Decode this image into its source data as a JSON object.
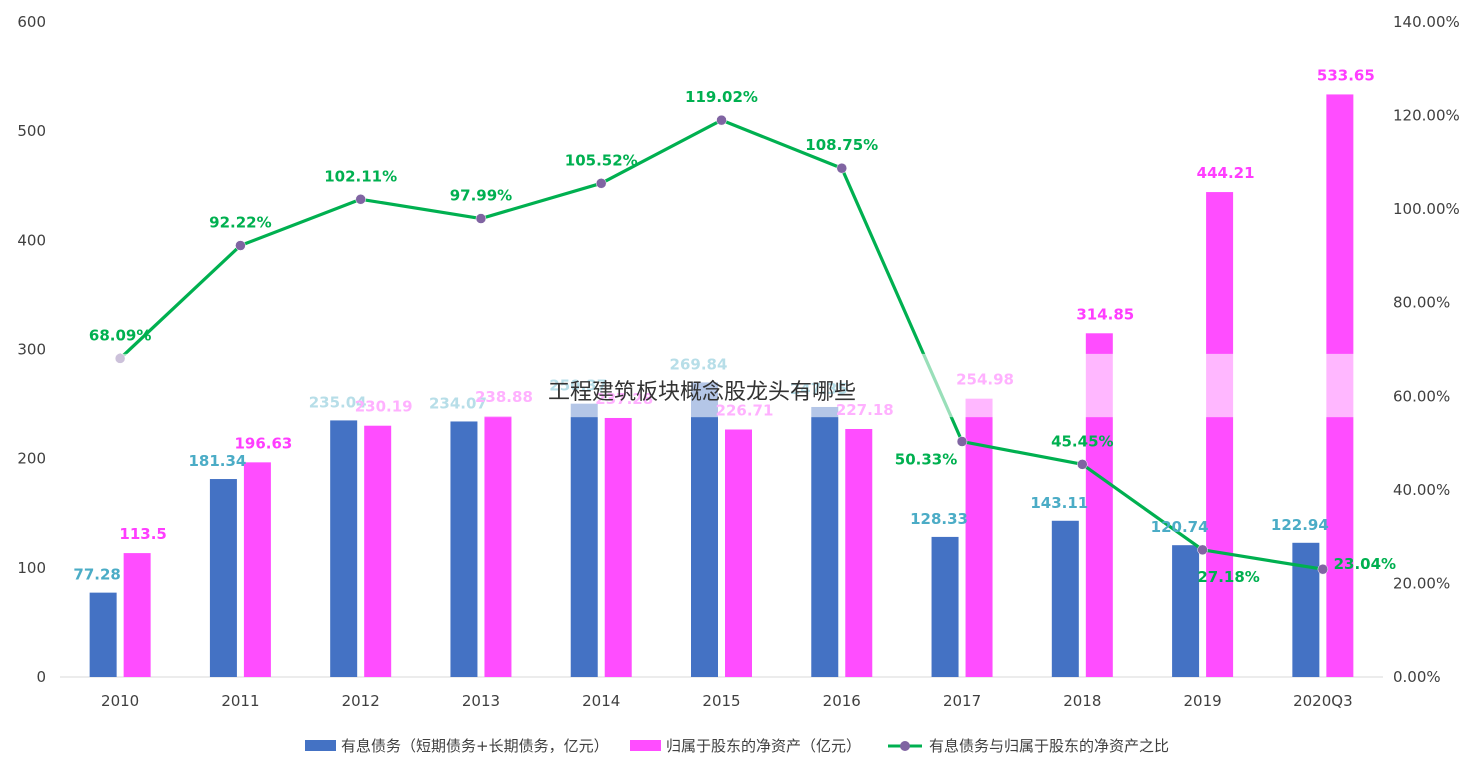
{
  "chart_data": {
    "type": "bar",
    "combo": "bar+line (dual axis)",
    "categories": [
      "2010",
      "2011",
      "2012",
      "2013",
      "2014",
      "2015",
      "2016",
      "2017",
      "2018",
      "2019",
      "2020Q3"
    ],
    "series": [
      {
        "name": "有息债务（短期债务+长期债务，亿元）",
        "type": "bar",
        "axis": "left",
        "color": "#4472c4",
        "values": [
          77.28,
          181.34,
          235.04,
          234.07,
          250.37,
          269.84,
          247.35,
          128.33,
          143.11,
          120.74,
          122.94
        ],
        "labels": [
          "77.28",
          "181.34",
          "235.04",
          "234.07",
          "250.37",
          "269.84",
          "247.35",
          "128.33",
          "143.11",
          "120.74",
          "122.94"
        ]
      },
      {
        "name": "归属于股东的净资产（亿元）",
        "type": "bar",
        "axis": "left",
        "color": "#ff4dff",
        "values": [
          113.5,
          196.63,
          230.19,
          238.88,
          237.28,
          226.71,
          227.18,
          254.98,
          314.85,
          444.21,
          533.65
        ],
        "labels": [
          "113.5",
          "196.63",
          "230.19",
          "238.88",
          "237.28",
          "226.71",
          "227.18",
          "254.98",
          "314.85",
          "444.21",
          "533.65"
        ]
      },
      {
        "name": "有息债务与归属于股东的净资产之比",
        "type": "line",
        "axis": "right",
        "color": "#00b050",
        "marker_color": "#8064a2",
        "values": [
          68.09,
          92.22,
          102.11,
          97.99,
          105.52,
          119.02,
          108.75,
          50.33,
          45.45,
          27.18,
          23.04
        ],
        "labels": [
          "68.09%",
          "92.22%",
          "102.11%",
          "97.99%",
          "105.52%",
          "119.02%",
          "108.75%",
          "50.33%",
          "45.45%",
          "27.18%",
          "23.04%"
        ]
      }
    ],
    "y_left": {
      "ylim": [
        0,
        600
      ],
      "ticks": [
        "0",
        "100",
        "200",
        "300",
        "400",
        "500",
        "600"
      ]
    },
    "y_right": {
      "ylim": [
        0,
        140
      ],
      "ticks": [
        "0.00%",
        "20.00%",
        "40.00%",
        "60.00%",
        "80.00%",
        "100.00%",
        "120.00%",
        "140.00%"
      ]
    },
    "grid": false,
    "legend": "bottom"
  },
  "watermark": "工程建筑板块概念股龙头有哪些"
}
